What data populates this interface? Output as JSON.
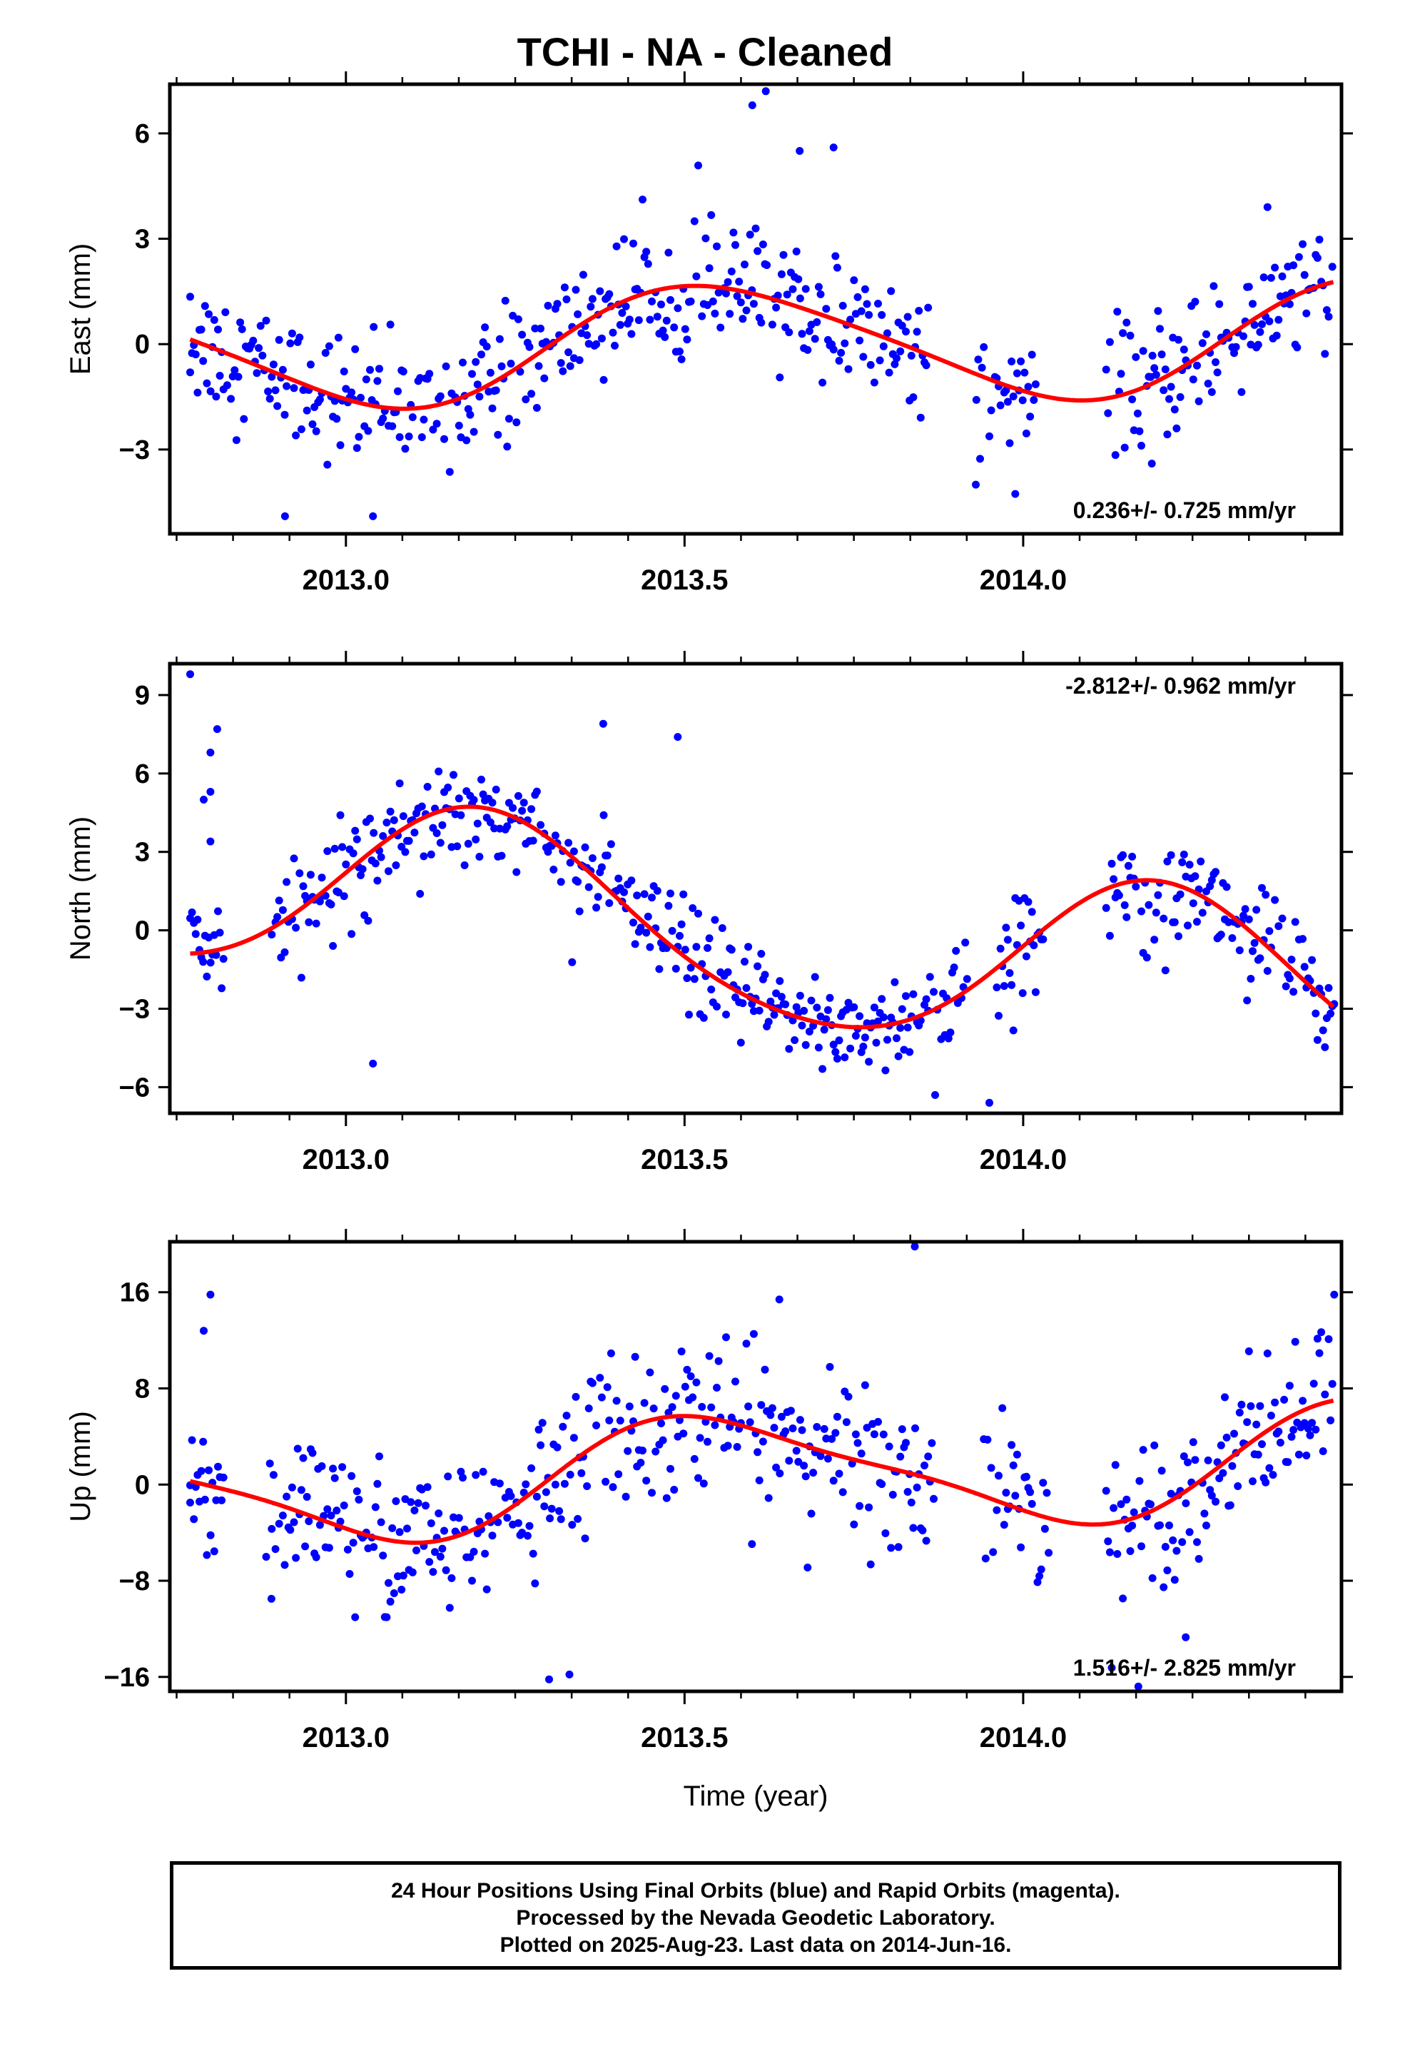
{
  "title": "TCHI  - NA - Cleaned",
  "footer": {
    "line1": "24 Hour Positions Using Final Orbits (blue) and Rapid Orbits (magenta).",
    "line2": "Processed by the Nevada Geodetic Laboratory.",
    "line3": "Plotted on 2025-Aug-23. Last data on 2014-Jun-16."
  },
  "colors": {
    "points": "#0000ff",
    "fit": "#ff0000",
    "axes": "#000000"
  },
  "chart_data": [
    {
      "type": "scatter",
      "panel": "east",
      "ylabel": "East (mm)",
      "xlabel": "",
      "xlim": [
        2012.74,
        2014.47
      ],
      "ylim": [
        -5.4,
        7.4
      ],
      "yticks": [
        -3,
        0,
        3,
        6
      ],
      "xticks": [
        2013.0,
        2013.5,
        2014.0
      ],
      "rate_label": "0.236+/- 0.725 mm/yr",
      "rate_position": "bottom-right",
      "data_start": 2012.77,
      "data_end": 2014.46,
      "fit": {
        "mean": 0.0,
        "trend": 0.236,
        "annual": [
          -0.55,
          -1.55
        ],
        "semiannual": [
          -0.2,
          0.1
        ]
      },
      "noise": 0.9,
      "gaps": [
        [
          2013.86,
          2013.93
        ],
        [
          2014.02,
          2014.12
        ]
      ],
      "outliers": [
        [
          2012.77,
          1.35
        ],
        [
          2012.91,
          -4.9
        ],
        [
          2013.04,
          -4.9
        ],
        [
          2013.6,
          6.8
        ],
        [
          2013.62,
          7.2
        ],
        [
          2013.67,
          5.5
        ],
        [
          2013.72,
          5.6
        ],
        [
          2013.93,
          -4.0
        ],
        [
          2014.19,
          -3.4
        ]
      ]
    },
    {
      "type": "scatter",
      "panel": "north",
      "ylabel": "North (mm)",
      "xlabel": "",
      "xlim": [
        2012.74,
        2014.47
      ],
      "ylim": [
        -7.0,
        10.2
      ],
      "yticks": [
        -6,
        -3,
        0,
        3,
        6,
        9
      ],
      "xticks": [
        2013.0,
        2013.5,
        2014.0
      ],
      "rate_label": "-2.812+/- 0.962 mm/yr",
      "rate_position": "top-right",
      "data_start": 2012.77,
      "data_end": 2014.46,
      "fit": {
        "mean": 0.1,
        "trend": -2.812,
        "annual": [
          3.3,
          0.9
        ],
        "semiannual": [
          0.3,
          -0.2
        ]
      },
      "noise": 1.0,
      "gaps": [
        [
          2012.82,
          2012.89
        ],
        [
          2013.92,
          2013.96
        ],
        [
          2014.03,
          2014.12
        ]
      ],
      "outliers": [
        [
          2012.77,
          9.8
        ],
        [
          2012.79,
          5.0
        ],
        [
          2012.8,
          6.8
        ],
        [
          2012.81,
          7.7
        ],
        [
          2012.8,
          3.4
        ],
        [
          2012.8,
          5.3
        ],
        [
          2013.38,
          7.9
        ],
        [
          2013.49,
          7.4
        ],
        [
          2013.04,
          -5.1
        ],
        [
          2013.87,
          -6.3
        ],
        [
          2013.95,
          -6.6
        ]
      ]
    },
    {
      "type": "scatter",
      "panel": "up",
      "ylabel": "Up (mm)",
      "xlabel": "Time (year)",
      "xlim": [
        2012.74,
        2014.47
      ],
      "ylim": [
        -17.2,
        20.2
      ],
      "yticks": [
        -16,
        -8,
        0,
        8,
        16
      ],
      "xticks": [
        2013.0,
        2013.5,
        2014.0
      ],
      "rate_label": "1.516+/- 2.825 mm/yr",
      "rate_position": "bottom-right",
      "data_start": 2012.77,
      "data_end": 2014.46,
      "fit": {
        "mean": 0.8,
        "trend": 1.516,
        "annual": [
          -1.5,
          -4.3
        ],
        "semiannual": [
          -0.9,
          0.6
        ]
      },
      "noise": 3.2,
      "gaps": [
        [
          2012.82,
          2012.88
        ],
        [
          2013.87,
          2013.94
        ],
        [
          2014.04,
          2014.12
        ]
      ],
      "outliers": [
        [
          2012.77,
          -1.5
        ],
        [
          2012.8,
          15.8
        ],
        [
          2012.79,
          12.8
        ],
        [
          2012.89,
          -9.5
        ],
        [
          2013.3,
          -16.2
        ],
        [
          2013.33,
          -15.8
        ],
        [
          2013.84,
          19.8
        ],
        [
          2013.64,
          15.4
        ],
        [
          2014.17,
          -16.8
        ],
        [
          2014.24,
          -12.7
        ]
      ]
    }
  ]
}
